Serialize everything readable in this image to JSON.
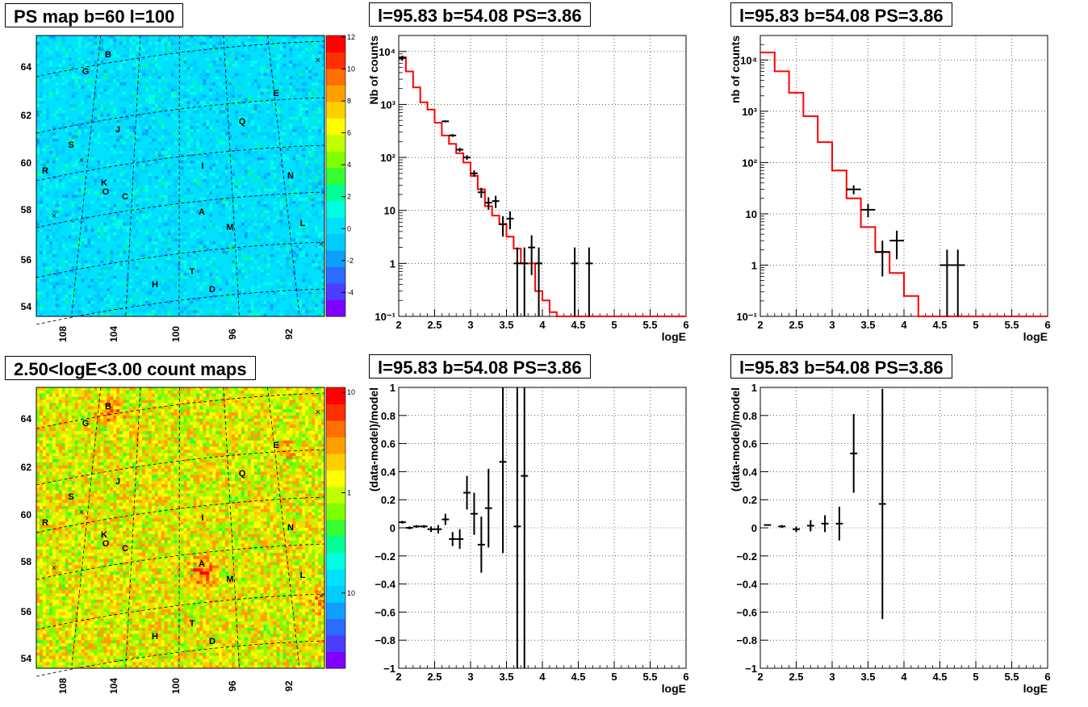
{
  "maps": [
    {
      "id": "ps-map",
      "title": "PS map b=60 l=100",
      "lon_ticks": [
        "108",
        "104",
        "100",
        "96",
        "92"
      ],
      "lat_ticks": [
        "64",
        "62",
        "60",
        "58",
        "56",
        "54"
      ],
      "colorbar_ticks": [
        "12",
        "10",
        "8",
        "6",
        "4",
        "2",
        "0",
        "-2",
        "-4"
      ],
      "sources": [
        "B",
        "G",
        "E",
        "Q",
        "J",
        "S",
        "I",
        "N",
        "R",
        "K",
        "O",
        "C",
        "A",
        "M",
        "L",
        "T",
        "H",
        "D"
      ],
      "palette": [
        "#7f00ff",
        "#4d3bff",
        "#2b6bff",
        "#0ea0ff",
        "#00ccff",
        "#00e0ff",
        "#00ffe0",
        "#00ff99",
        "#33ff33",
        "#7fff00",
        "#bfff00",
        "#ffff00",
        "#ffd000",
        "#ffa000",
        "#ff7000",
        "#ff3000",
        "#ff0000"
      ]
    },
    {
      "id": "count-map",
      "title": "2.50<logE<3.00 count maps",
      "lon_ticks": [
        "108",
        "104",
        "100",
        "96",
        "92"
      ],
      "lat_ticks": [
        "64",
        "62",
        "60",
        "58",
        "56",
        "54"
      ],
      "colorbar_ticks": [
        "10",
        "1",
        "10⁻¹"
      ],
      "sources": [
        "B",
        "G",
        "E",
        "Q",
        "J",
        "S",
        "I",
        "N",
        "R",
        "K",
        "O",
        "C",
        "A",
        "M",
        "L",
        "T",
        "H",
        "D"
      ],
      "palette": [
        "#7f00ff",
        "#4d3bff",
        "#2b6bff",
        "#0ea0ff",
        "#00ccff",
        "#00e0ff",
        "#00ffe0",
        "#00ff99",
        "#33ff33",
        "#7fff00",
        "#bfff00",
        "#ffff00",
        "#ffd000",
        "#ffa000",
        "#ff7000",
        "#ff3000",
        "#ff0000"
      ]
    }
  ],
  "chart_data": [
    {
      "type": "histogram-errorbars",
      "title": "l=95.83 b=54.08 PS=3.86",
      "xlabel": "logE",
      "ylabel": "Nb of counts",
      "xlim": [
        2,
        6
      ],
      "ylim": [
        0.1,
        20000
      ],
      "yscale": "log",
      "x_ticks": [
        "2",
        "2.5",
        "3",
        "3.5",
        "4",
        "4.5",
        "5",
        "5.5",
        "6"
      ],
      "y_ticks": [
        {
          "v": 0.1,
          "label": "10⁻¹"
        },
        {
          "v": 1,
          "label": "1"
        },
        {
          "v": 10,
          "label": "10"
        },
        {
          "v": 100,
          "label": "10²"
        },
        {
          "v": 1000,
          "label": "10³"
        },
        {
          "v": 10000,
          "label": "10⁴"
        }
      ],
      "grid": true,
      "model_bin_width": 0.1,
      "model_bins_x_start": 2.0,
      "model": [
        7800,
        4200,
        2100,
        1100,
        800,
        450,
        260,
        180,
        120,
        80,
        45,
        25,
        12,
        8,
        5.5,
        3.2,
        1.9,
        1,
        1,
        0.3,
        0.2,
        0.12,
        0.1,
        0.1,
        0.1,
        0.1,
        0.1,
        0.1,
        0.1,
        0.1,
        0.1,
        0.1,
        0.1,
        0.1,
        0.1,
        0.1,
        0.1,
        0.1,
        0.1,
        0.1
      ],
      "data": [
        {
          "x": 2.05,
          "y": 7500,
          "err": 800
        },
        {
          "x": 2.65,
          "y": 480,
          "err": 20
        },
        {
          "x": 2.75,
          "y": 260,
          "err": 16
        },
        {
          "x": 2.85,
          "y": 140,
          "err": 12
        },
        {
          "x": 2.95,
          "y": 100,
          "err": 10
        },
        {
          "x": 3.05,
          "y": 50,
          "err": 7
        },
        {
          "x": 3.15,
          "y": 22,
          "err": 4.7
        },
        {
          "x": 3.25,
          "y": 14,
          "err": 3.7
        },
        {
          "x": 3.35,
          "y": 15,
          "err": 3.9
        },
        {
          "x": 3.45,
          "y": 5.5,
          "err": 2.3
        },
        {
          "x": 3.55,
          "y": 7,
          "err": 2.6
        },
        {
          "x": 3.65,
          "y": 1,
          "err": 1
        },
        {
          "x": 3.75,
          "y": 1,
          "err": 1
        },
        {
          "x": 3.85,
          "y": 2,
          "err": 1.4
        },
        {
          "x": 3.95,
          "y": 1,
          "err": 1
        },
        {
          "x": 4.45,
          "y": 1,
          "err": 1
        },
        {
          "x": 4.65,
          "y": 1,
          "err": 1
        }
      ]
    },
    {
      "type": "histogram-errorbars",
      "title": "l=95.83 b=54.08 PS=3.86",
      "xlabel": "logE",
      "ylabel": "nb of counts",
      "xlim": [
        2,
        6
      ],
      "ylim": [
        0.1,
        30000
      ],
      "yscale": "log",
      "x_ticks": [
        "2",
        "2.5",
        "3",
        "3.5",
        "4",
        "4.5",
        "5",
        "5.5",
        "6"
      ],
      "y_ticks": [
        {
          "v": 0.1,
          "label": "10⁻¹"
        },
        {
          "v": 1,
          "label": "1"
        },
        {
          "v": 10,
          "label": "10"
        },
        {
          "v": 100,
          "label": "10²"
        },
        {
          "v": 1000,
          "label": "10³"
        },
        {
          "v": 10000,
          "label": "10⁴"
        }
      ],
      "grid": true,
      "model_bin_width": 0.2,
      "model_bins_x_start": 2.0,
      "model": [
        14000,
        6000,
        2300,
        800,
        250,
        70,
        20,
        5.5,
        1.8,
        0.7,
        0.25,
        0.1,
        0.1,
        0.1,
        0.1,
        0.1,
        0.1,
        0.1,
        0.1,
        0.1
      ],
      "data": [
        {
          "x": 3.3,
          "y": 30,
          "err": 6
        },
        {
          "x": 3.5,
          "y": 12,
          "err": 3.5
        },
        {
          "x": 3.7,
          "y": 1.8,
          "err": 1.2
        },
        {
          "x": 3.9,
          "y": 3,
          "err": 1.7
        },
        {
          "x": 4.6,
          "y": 1,
          "err": 1
        },
        {
          "x": 4.75,
          "y": 1,
          "err": 1
        }
      ]
    },
    {
      "type": "residual-errorbars",
      "title": "l=95.83 b=54.08 PS=3.86",
      "xlabel": "logE",
      "ylabel": "(data-model)/model",
      "xlim": [
        2,
        6
      ],
      "ylim": [
        -1,
        1
      ],
      "x_ticks": [
        "2",
        "2.5",
        "3",
        "3.5",
        "4",
        "4.5",
        "5",
        "5.5",
        "6"
      ],
      "y_ticks": [
        "-1",
        "-0.8",
        "-0.6",
        "-0.4",
        "-0.2",
        "0",
        "0.2",
        "0.4",
        "0.6",
        "0.8",
        "1"
      ],
      "grid": true,
      "data": [
        {
          "x": 2.05,
          "y": 0.04,
          "err": 0.01
        },
        {
          "x": 2.15,
          "y": 0.0,
          "err": 0.01
        },
        {
          "x": 2.25,
          "y": 0.01,
          "err": 0.01
        },
        {
          "x": 2.35,
          "y": 0.01,
          "err": 0.01
        },
        {
          "x": 2.45,
          "y": -0.01,
          "err": 0.02
        },
        {
          "x": 2.55,
          "y": -0.01,
          "err": 0.03
        },
        {
          "x": 2.65,
          "y": 0.06,
          "err": 0.04
        },
        {
          "x": 2.75,
          "y": -0.08,
          "err": 0.05
        },
        {
          "x": 2.85,
          "y": -0.08,
          "err": 0.07
        },
        {
          "x": 2.95,
          "y": 0.25,
          "err": 0.12
        },
        {
          "x": 3.05,
          "y": 0.1,
          "err": 0.15
        },
        {
          "x": 3.15,
          "y": -0.12,
          "err": 0.2
        },
        {
          "x": 3.25,
          "y": 0.14,
          "err": 0.28
        },
        {
          "x": 3.45,
          "y": 0.47,
          "err": 0.65
        },
        {
          "x": 3.65,
          "y": 0.01,
          "err": 1.1
        },
        {
          "x": 3.75,
          "y": 0.37,
          "err": 1.5
        }
      ]
    },
    {
      "type": "residual-errorbars",
      "title": "l=95.83 b=54.08 PS=3.86",
      "xlabel": "logE",
      "ylabel": "(data-model)/model",
      "xlim": [
        2,
        6
      ],
      "ylim": [
        -1,
        1
      ],
      "x_ticks": [
        "2",
        "2.5",
        "3",
        "3.5",
        "4",
        "4.5",
        "5",
        "5.5",
        "6"
      ],
      "y_ticks": [
        "-1",
        "-0.8",
        "-0.6",
        "-0.4",
        "-0.2",
        "0",
        "0.2",
        "0.4",
        "0.6",
        "0.8",
        "1"
      ],
      "grid": true,
      "data": [
        {
          "x": 2.1,
          "y": 0.02,
          "err": 0.005
        },
        {
          "x": 2.3,
          "y": 0.01,
          "err": 0.01
        },
        {
          "x": 2.5,
          "y": -0.01,
          "err": 0.02
        },
        {
          "x": 2.7,
          "y": 0.015,
          "err": 0.04
        },
        {
          "x": 2.9,
          "y": 0.03,
          "err": 0.06
        },
        {
          "x": 3.1,
          "y": 0.03,
          "err": 0.12
        },
        {
          "x": 3.3,
          "y": 0.53,
          "err": 0.28
        },
        {
          "x": 3.7,
          "y": 0.17,
          "err": 0.82
        }
      ]
    }
  ]
}
